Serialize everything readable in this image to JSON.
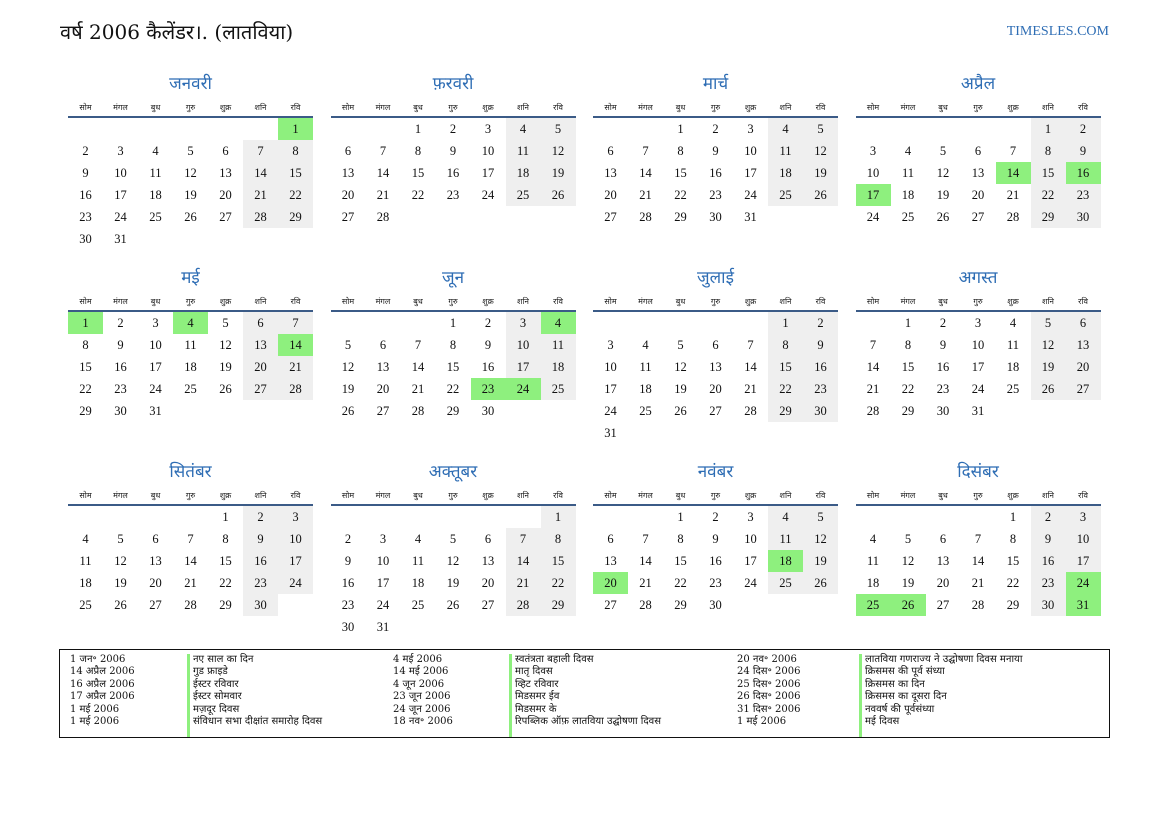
{
  "title": "वर्ष 2006 कैलेंडर।. (लातविया)",
  "site": "TIMESLES.COM",
  "weekdays": [
    "सोम",
    "मंगल",
    "बुध",
    "गुरु",
    "शुक्र",
    "शनि",
    "रवि"
  ],
  "months": [
    {
      "name": "जनवरी",
      "offset": 6,
      "days": 31,
      "holidays": [
        1
      ]
    },
    {
      "name": "फ़रवरी",
      "offset": 2,
      "days": 28,
      "holidays": []
    },
    {
      "name": "मार्च",
      "offset": 2,
      "days": 31,
      "holidays": []
    },
    {
      "name": "अप्रैल",
      "offset": 5,
      "days": 30,
      "holidays": [
        14,
        16,
        17
      ]
    },
    {
      "name": "मई",
      "offset": 0,
      "days": 31,
      "holidays": [
        1,
        4,
        14
      ]
    },
    {
      "name": "जून",
      "offset": 3,
      "days": 30,
      "holidays": [
        4,
        23,
        24
      ]
    },
    {
      "name": "जुलाई",
      "offset": 5,
      "days": 31,
      "holidays": []
    },
    {
      "name": "अगस्त",
      "offset": 1,
      "days": 31,
      "holidays": []
    },
    {
      "name": "सितंबर",
      "offset": 4,
      "days": 30,
      "holidays": []
    },
    {
      "name": "अक्तूबर",
      "offset": 6,
      "days": 31,
      "holidays": []
    },
    {
      "name": "नवंबर",
      "offset": 2,
      "days": 30,
      "holidays": [
        18,
        20
      ]
    },
    {
      "name": "दिसंबर",
      "offset": 4,
      "days": 31,
      "holidays": [
        24,
        25,
        26,
        31
      ]
    }
  ],
  "holiday_columns": [
    {
      "dates": [
        "1 जन॰ 2006",
        "14 अप्रैल 2006",
        "16 अप्रैल 2006",
        "17 अप्रैल 2006",
        "1 मई 2006",
        "1 मई 2006"
      ],
      "names": [
        "नए साल का दिन",
        "गुड फ्राइडे",
        "ईस्टर रविवार",
        "ईस्टर सोमवार",
        "मज़दूर दिवस",
        "संविधान सभा दीक्षांत समारोह दिवस"
      ]
    },
    {
      "dates": [
        "4 मई 2006",
        "14 मई 2006",
        "4 जून 2006",
        "23 जून 2006",
        "24 जून 2006",
        "18 नव॰ 2006"
      ],
      "names": [
        "स्वतंत्रता बहाली दिवस",
        "मातृ दिवस",
        "व्हिट रविवार",
        "मिडसमर ईव",
        "मिडसमर के",
        "रिपब्लिक ऑफ़ लातविया उद्घोषणा दिवस"
      ]
    },
    {
      "dates": [
        "20 नव॰ 2006",
        "24 दिस॰ 2006",
        "25 दिस॰ 2006",
        "26 दिस॰ 2006",
        "31 दिस॰ 2006",
        "1 मई 2006"
      ],
      "names": [
        "लातविया गणराज्य ने उद्घोषणा दिवस मनाया",
        "क्रिसमस की पूर्व संध्या",
        "क्रिसमस का दिन",
        "क्रिसमस का दूसरा दिन",
        "नववर्ष की पूर्वसंध्या",
        "मई दिवस"
      ]
    }
  ]
}
